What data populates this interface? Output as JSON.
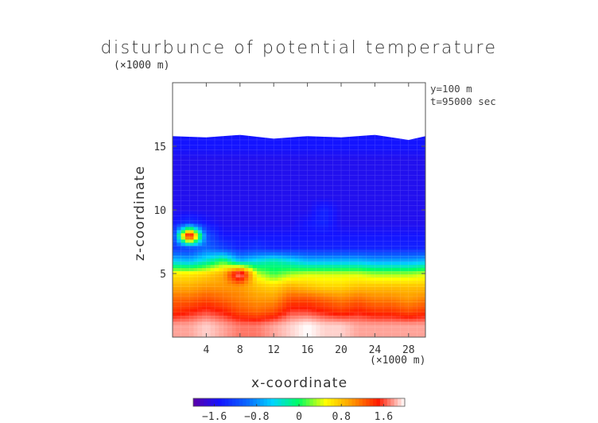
{
  "chart_data": {
    "type": "heatmap",
    "title": "disturbunce of potential temperature",
    "xlabel": "x-coordinate",
    "ylabel": "z-coordinate",
    "x_unit": "(×1000 m)",
    "y_unit": "(×1000 m)",
    "annotations": [
      "y=100 m",
      "t=95000 sec"
    ],
    "xlim": [
      0,
      30
    ],
    "ylim": [
      0,
      20
    ],
    "x_ticks": [
      4,
      8,
      12,
      16,
      20,
      24,
      28
    ],
    "y_ticks": [
      5,
      10,
      15
    ],
    "x_tick_labels": [
      "4",
      "8",
      "12",
      "16",
      "20",
      "24",
      "28"
    ],
    "y_tick_labels": [
      "5",
      "10",
      "15"
    ],
    "colorbar": {
      "range": [
        -2.0,
        2.0
      ],
      "ticks": [
        -1.6,
        -0.8,
        0,
        0.8,
        1.6
      ],
      "tick_labels": [
        "−1.6",
        "−0.8",
        "0",
        "0.8",
        "1.6"
      ],
      "colormap": [
        "#5b00a8",
        "#1414ff",
        "#0a64ff",
        "#00d4ff",
        "#00ff60",
        "#ffff00",
        "#ff9800",
        "#ff1a00",
        "#ffffff"
      ]
    },
    "field_top_z": 15.9,
    "field_top_x": [
      0,
      4,
      8,
      12,
      16,
      20,
      24,
      28,
      30
    ],
    "field_top_profile_z": [
      15.8,
      15.7,
      15.9,
      15.6,
      15.8,
      15.7,
      15.9,
      15.5,
      15.8
    ],
    "x": [
      0,
      2,
      4,
      6,
      8,
      10,
      12,
      14,
      16,
      18,
      20,
      22,
      24,
      26,
      28,
      30
    ],
    "z": [
      1,
      2,
      3,
      4,
      5,
      6,
      7,
      8,
      9,
      10,
      11,
      12,
      13,
      14,
      15
    ],
    "values": [
      [
        1.8,
        1.8,
        1.9,
        1.8,
        1.7,
        1.7,
        1.8,
        1.9,
        2.0,
        1.9,
        1.9,
        1.8,
        1.8,
        1.8,
        1.8,
        1.8
      ],
      [
        1.4,
        1.5,
        1.6,
        1.5,
        1.3,
        1.2,
        1.3,
        1.6,
        1.6,
        1.5,
        1.4,
        1.5,
        1.4,
        1.4,
        1.3,
        1.4
      ],
      [
        1.2,
        1.2,
        1.3,
        1.2,
        1.1,
        1.0,
        1.0,
        1.3,
        1.3,
        1.2,
        1.1,
        1.2,
        1.1,
        1.1,
        1.0,
        1.1
      ],
      [
        0.9,
        0.9,
        1.0,
        1.0,
        1.0,
        0.8,
        0.7,
        0.9,
        0.8,
        0.7,
        0.7,
        0.8,
        0.8,
        0.8,
        0.8,
        0.8
      ],
      [
        0.6,
        0.6,
        0.7,
        0.9,
        1.9,
        0.4,
        0.1,
        0.3,
        0.4,
        0.4,
        0.4,
        0.4,
        0.3,
        0.3,
        0.3,
        0.4
      ],
      [
        -0.5,
        -0.6,
        -0.3,
        0.1,
        -0.6,
        -0.4,
        -0.2,
        -0.4,
        -0.6,
        -0.6,
        -0.6,
        -0.6,
        -0.7,
        -0.7,
        -0.7,
        -0.6
      ],
      [
        -1.3,
        -1.3,
        -1.0,
        -1.2,
        -1.4,
        -1.3,
        -1.4,
        -1.4,
        -1.4,
        -1.4,
        -1.4,
        -1.4,
        -1.4,
        -1.4,
        -1.4,
        -1.4
      ],
      [
        -1.4,
        2.0,
        -1.1,
        -1.5,
        -1.5,
        -1.5,
        -1.5,
        -1.5,
        -1.5,
        -1.5,
        -1.5,
        -1.5,
        -1.5,
        -1.5,
        -1.5,
        -1.5
      ],
      [
        -1.5,
        -1.3,
        -1.5,
        -1.6,
        -1.6,
        -1.6,
        -1.6,
        -1.6,
        -1.5,
        -1.4,
        -1.6,
        -1.6,
        -1.6,
        -1.6,
        -1.6,
        -1.6
      ],
      [
        -1.6,
        -1.6,
        -1.6,
        -1.6,
        -1.6,
        -1.6,
        -1.6,
        -1.6,
        -1.6,
        -1.4,
        -1.6,
        -1.6,
        -1.6,
        -1.6,
        -1.6,
        -1.6
      ],
      [
        -1.6,
        -1.6,
        -1.6,
        -1.6,
        -1.6,
        -1.6,
        -1.6,
        -1.6,
        -1.6,
        -1.6,
        -1.6,
        -1.6,
        -1.6,
        -1.6,
        -1.6,
        -1.6
      ],
      [
        -1.6,
        -1.6,
        -1.6,
        -1.6,
        -1.6,
        -1.6,
        -1.6,
        -1.6,
        -1.6,
        -1.6,
        -1.6,
        -1.6,
        -1.6,
        -1.6,
        -1.6,
        -1.6
      ],
      [
        -1.6,
        -1.6,
        -1.6,
        -1.6,
        -1.6,
        -1.6,
        -1.6,
        -1.6,
        -1.6,
        -1.6,
        -1.6,
        -1.6,
        -1.6,
        -1.6,
        -1.6,
        -1.6
      ],
      [
        -1.6,
        -1.6,
        -1.6,
        -1.6,
        -1.6,
        -1.6,
        -1.6,
        -1.6,
        -1.6,
        -1.6,
        -1.6,
        -1.6,
        -1.6,
        -1.6,
        -1.6,
        -1.6
      ],
      [
        -1.5,
        -1.5,
        -1.5,
        -1.5,
        -1.5,
        -1.5,
        -1.5,
        -1.5,
        -1.5,
        -1.5,
        -1.5,
        -1.5,
        -1.5,
        -1.5,
        -1.5,
        -1.5
      ]
    ]
  }
}
